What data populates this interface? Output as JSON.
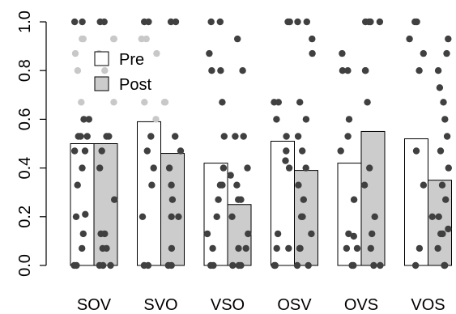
{
  "chart_data": {
    "type": "bar",
    "categories": [
      "SOV",
      "SVO",
      "VSO",
      "OSV",
      "OVS",
      "VOS"
    ],
    "ylim": [
      0,
      1
    ],
    "yticks": [
      "0.0",
      "0.2",
      "0.4",
      "0.6",
      "0.8",
      "1.0"
    ],
    "legend": {
      "placement": "top-left",
      "entries": [
        "Pre",
        "Post"
      ]
    },
    "colors": {
      "pre": "#ffffff",
      "post": "#cccccc",
      "point_dark": "#404040",
      "point_light": "#c8c8c8"
    },
    "series": [
      {
        "name": "Pre",
        "values": [
          0.5,
          0.59,
          0.42,
          0.51,
          0.42,
          0.52
        ]
      },
      {
        "name": "Post",
        "values": [
          0.5,
          0.46,
          0.25,
          0.39,
          0.55,
          0.35
        ]
      }
    ],
    "points": [
      {
        "category": "SOV",
        "series": "Pre",
        "dark": [
          1.0,
          1.0,
          0.6,
          0.6,
          0.53,
          0.53,
          0.53,
          0.47,
          0.47,
          0.4,
          0.33,
          0.21,
          0.2,
          0.13,
          0.07,
          0.0,
          0.0
        ],
        "light": [
          0.93,
          0.93,
          0.87,
          0.8,
          0.67
        ]
      },
      {
        "category": "SOV",
        "series": "Post",
        "dark": [
          1.0,
          1.0,
          0.53,
          0.53,
          0.47,
          0.4,
          0.27,
          0.13,
          0.13,
          0.07,
          0.07,
          0.0,
          0.0,
          0.0
        ],
        "light": [
          0.93,
          0.93,
          0.87,
          0.8,
          0.67
        ]
      },
      {
        "category": "SVO",
        "series": "Pre",
        "dark": [
          1.0,
          1.0,
          0.53,
          0.47,
          0.4,
          0.33,
          0.2,
          0.0,
          0.0
        ],
        "light": [
          0.93,
          0.93,
          0.87,
          0.67,
          0.6
        ]
      },
      {
        "category": "SVO",
        "series": "Post",
        "dark": [
          1.0,
          1.0,
          0.53,
          0.47,
          0.4,
          0.33,
          0.27,
          0.2,
          0.2,
          0.07,
          0.0,
          0.0
        ],
        "light": [
          0.67,
          0.67
        ]
      },
      {
        "category": "VSO",
        "series": "Pre",
        "dark": [
          1.0,
          1.0,
          0.87,
          0.8,
          0.8,
          0.67,
          0.53,
          0.4,
          0.33,
          0.33,
          0.27,
          0.2,
          0.13,
          0.07,
          0.0,
          0.0
        ],
        "light": []
      },
      {
        "category": "VSO",
        "series": "Post",
        "dark": [
          0.93,
          0.8,
          0.53,
          0.53,
          0.4,
          0.37,
          0.33,
          0.27,
          0.27,
          0.2,
          0.13,
          0.07,
          0.07,
          0.0,
          0.0,
          0.0
        ],
        "light": []
      },
      {
        "category": "OSV",
        "series": "Pre",
        "dark": [
          1.0,
          1.0,
          0.67,
          0.67,
          0.6,
          0.53,
          0.47,
          0.43,
          0.4,
          0.13,
          0.07,
          0.07,
          0.0,
          0.0
        ],
        "light": []
      },
      {
        "category": "OSV",
        "series": "Post",
        "dark": [
          1.0,
          1.0,
          0.93,
          0.87,
          0.67,
          0.6,
          0.53,
          0.47,
          0.4,
          0.33,
          0.27,
          0.2,
          0.2,
          0.13,
          0.07,
          0.07,
          0.0,
          0.0
        ],
        "light": []
      },
      {
        "category": "OVS",
        "series": "Pre",
        "dark": [
          0.87,
          0.8,
          0.8,
          0.6,
          0.53,
          0.47,
          0.27,
          0.13,
          0.12,
          0.07,
          0.07,
          0.0,
          0.0
        ],
        "light": []
      },
      {
        "category": "OVS",
        "series": "Post",
        "dark": [
          1.0,
          1.0,
          1.0,
          1.0,
          0.8,
          0.8,
          0.67,
          0.4,
          0.33,
          0.2,
          0.13,
          0.07,
          0.0,
          0.0
        ],
        "light": []
      },
      {
        "category": "VOS",
        "series": "Pre",
        "dark": [
          1.0,
          1.0,
          0.93,
          0.87,
          0.8,
          0.47,
          0.33,
          0.07,
          0.0
        ],
        "light": []
      },
      {
        "category": "VOS",
        "series": "Post",
        "dark": [
          0.93,
          0.87,
          0.8,
          0.73,
          0.67,
          0.6,
          0.53,
          0.47,
          0.4,
          0.33,
          0.27,
          0.2,
          0.2,
          0.15,
          0.13,
          0.13,
          0.07,
          0.0,
          0.0
        ],
        "light": []
      }
    ]
  }
}
